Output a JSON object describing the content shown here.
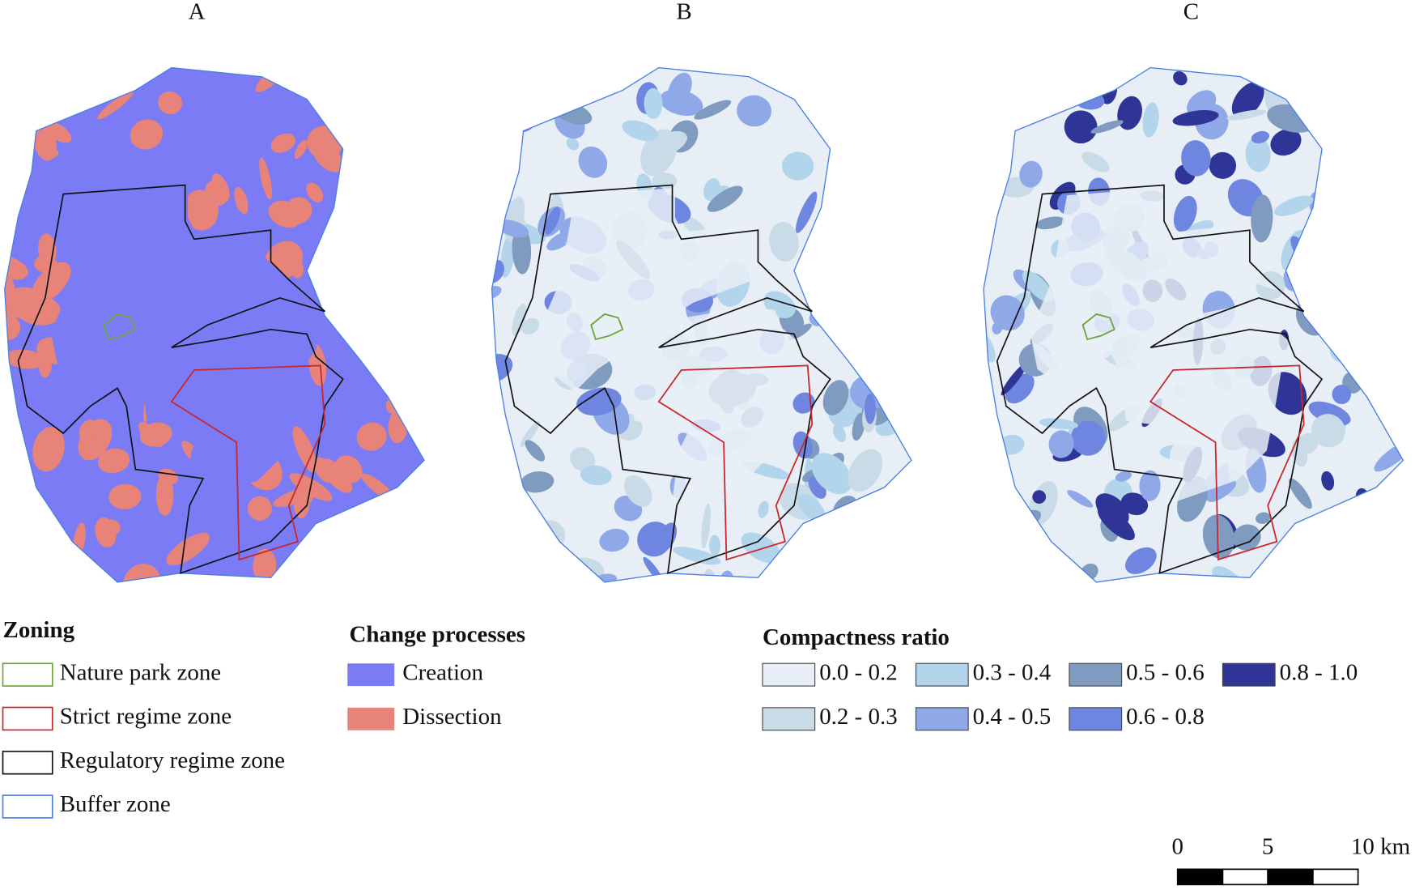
{
  "panels": [
    "A",
    "B",
    "C"
  ],
  "legends": {
    "zoning": {
      "title": "Zoning",
      "items": [
        {
          "label": "Nature park zone",
          "color": "#6aa536"
        },
        {
          "label": "Strict regime zone",
          "color": "#c8262b"
        },
        {
          "label": "Regulatory regime zone",
          "color": "#111111"
        },
        {
          "label": "Buffer zone",
          "color": "#4a7fe0"
        }
      ]
    },
    "change": {
      "title": "Change processes",
      "items": [
        {
          "label": "Creation",
          "color": "#7b7bf5"
        },
        {
          "label": "Dissection",
          "color": "#e8837a"
        }
      ]
    },
    "compactness": {
      "title": "Compactness ratio",
      "items": [
        {
          "label": "0.0 - 0.2",
          "color": "#e8eef6"
        },
        {
          "label": "0.2 - 0.3",
          "color": "#c9dbe7"
        },
        {
          "label": "0.3 - 0.4",
          "color": "#b3d5ec"
        },
        {
          "label": "0.4 - 0.5",
          "color": "#8fa9e8"
        },
        {
          "label": "0.5 - 0.6",
          "color": "#7f9bc0"
        },
        {
          "label": "0.6 - 0.8",
          "color": "#6f86e0"
        },
        {
          "label": "0.8 - 1.0",
          "color": "#2e3596"
        }
      ]
    }
  },
  "scale_bar": {
    "labels": [
      "0",
      "5",
      "10 km"
    ]
  }
}
